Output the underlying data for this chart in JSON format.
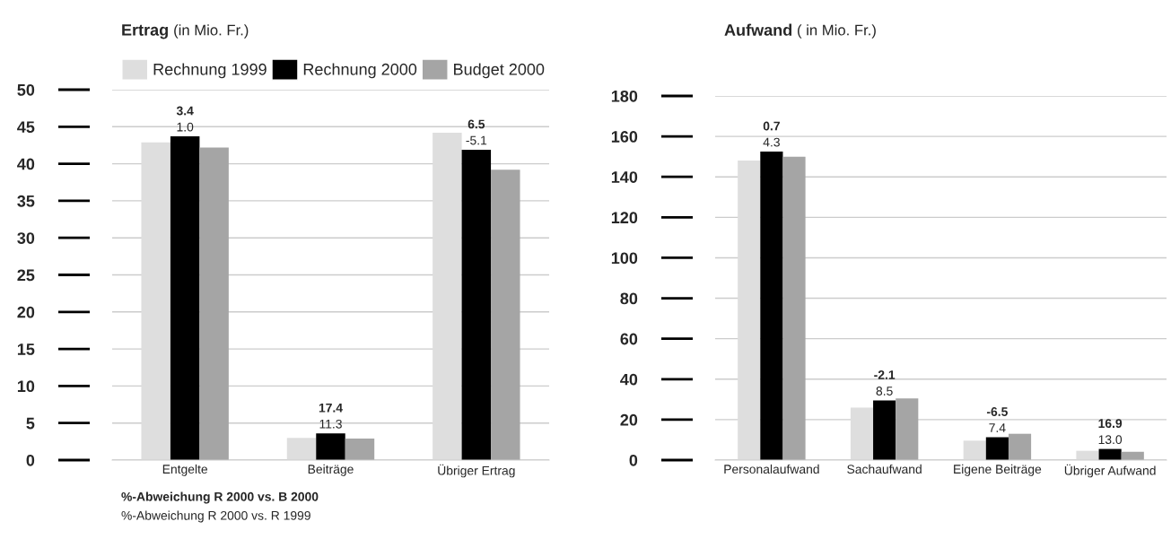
{
  "chart_data": [
    {
      "type": "bar",
      "title": "Ertrag",
      "subtitle": "(in Mio. Fr.)",
      "categories": [
        "Entgelte",
        "Beiträge",
        "Übriger Ertrag"
      ],
      "series": [
        {
          "name": "Rechnung 1999",
          "color": "#dedede",
          "values": [
            42.9,
            3.0,
            44.2
          ]
        },
        {
          "name": "Rechnung 2000",
          "color": "#000000",
          "values": [
            43.7,
            3.6,
            41.9
          ]
        },
        {
          "name": "Budget 2000",
          "color": "#a5a5a5",
          "values": [
            42.2,
            2.9,
            39.2
          ]
        }
      ],
      "ylim": [
        0,
        50
      ],
      "yticks": [
        0,
        5,
        10,
        15,
        20,
        25,
        30,
        35,
        40,
        45,
        50
      ],
      "grid": "y",
      "legend": "top left",
      "annotations": [
        {
          "text": "3.4",
          "x": "Entgelte",
          "y": 43.7
        },
        {
          "text": "1.0",
          "x": "Entgelte",
          "y": 43.7
        },
        {
          "text": "17.4",
          "x": "Beiträge",
          "y": 3.6
        },
        {
          "text": "11.3",
          "x": "Beiträge",
          "y": 3.6
        },
        {
          "text": "6.5",
          "x": "Übriger Ertrag",
          "y": 41.9
        },
        {
          "text": "-5.1",
          "x": "Übriger Ertrag",
          "y": 41.9
        },
        "%-Abweichung R 2000 vs. B 2000",
        "%-Abweichung R 2000 vs. R 1999"
      ]
    },
    {
      "type": "bar",
      "title": "Aufwand",
      "subtitle": "( in Mio. Fr.)",
      "categories": [
        "Personalaufwand",
        "Sachaufwand",
        "Eigene Beiträge",
        "Übriger Aufwand"
      ],
      "series": [
        {
          "color": "#dedede",
          "values": [
            148.1,
            25.9,
            9.6,
            4.6
          ]
        },
        {
          "color": "#000000",
          "values": [
            152.5,
            29.5,
            11.3,
            5.5
          ]
        },
        {
          "color": "#a5a5a5",
          "values": [
            150.0,
            30.5,
            13.0,
            4.1
          ]
        }
      ],
      "ylim": [
        0,
        180
      ],
      "yticks": [
        0,
        20,
        40,
        60,
        80,
        100,
        120,
        140,
        160,
        180
      ],
      "grid": "y",
      "annotations": [
        {
          "text": "0.7",
          "x": "Personalaufwand",
          "y": 152.5
        },
        {
          "text": "4.3",
          "x": "Personalaufwand",
          "y": 152.5
        },
        {
          "text": "-2.1",
          "x": "Sachaufwand",
          "y": 29.5
        },
        {
          "text": "8.5",
          "x": "Sachaufwand",
          "y": 29.5
        },
        {
          "text": "-6.5",
          "x": "Eigene Beiträge",
          "y": 11.3
        },
        {
          "text": "7.4",
          "x": "Eigene Beiträge",
          "y": 11.3
        },
        {
          "text": "16.9",
          "x": "Übriger Aufwand",
          "y": 5.5
        },
        {
          "text": "13.0",
          "x": "Übriger Aufwand",
          "y": 5.5
        }
      ]
    }
  ]
}
